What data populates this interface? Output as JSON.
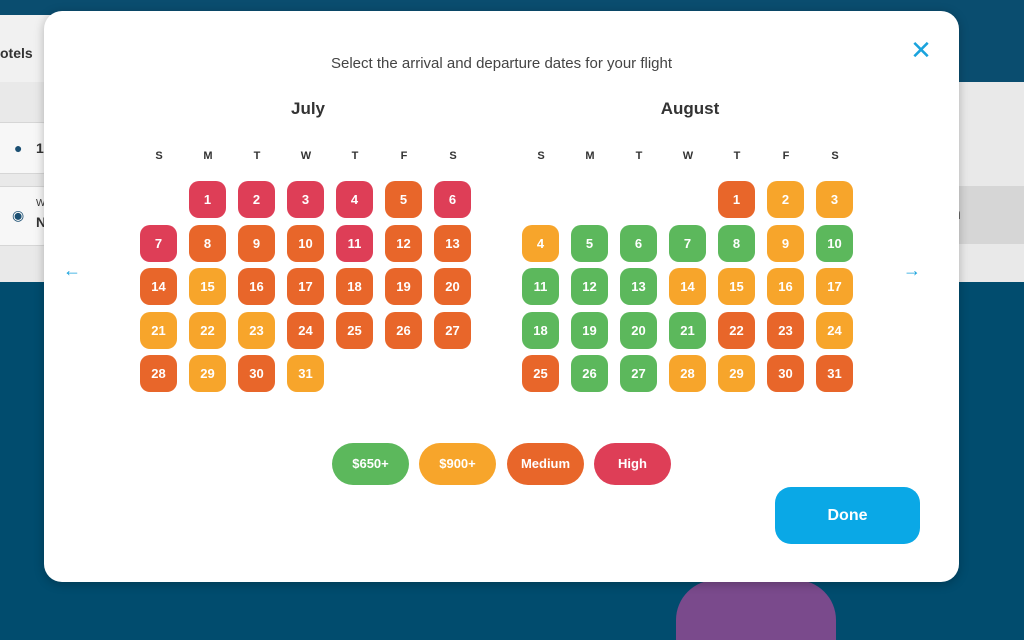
{
  "background": {
    "tab_label": "otels",
    "travelers_value": "1",
    "destination_label": "W",
    "destination_value": "N",
    "search_label": "h"
  },
  "modal": {
    "title": "Select the arrival and departure dates for your flight",
    "close_icon": "close-icon",
    "prev_icon": "arrow-left-icon",
    "next_icon": "arrow-right-icon",
    "done_label": "Done"
  },
  "weekdays": [
    "S",
    "M",
    "T",
    "W",
    "T",
    "F",
    "S"
  ],
  "months": [
    {
      "name": "July",
      "start_weekday": 1,
      "days": [
        {
          "d": "1",
          "p": "high"
        },
        {
          "d": "2",
          "p": "high"
        },
        {
          "d": "3",
          "p": "high"
        },
        {
          "d": "4",
          "p": "high"
        },
        {
          "d": "5",
          "p": "medium"
        },
        {
          "d": "6",
          "p": "high"
        },
        {
          "d": "7",
          "p": "high"
        },
        {
          "d": "8",
          "p": "medium"
        },
        {
          "d": "9",
          "p": "medium"
        },
        {
          "d": "10",
          "p": "medium"
        },
        {
          "d": "11",
          "p": "high"
        },
        {
          "d": "12",
          "p": "medium"
        },
        {
          "d": "13",
          "p": "medium"
        },
        {
          "d": "14",
          "p": "medium"
        },
        {
          "d": "15",
          "p": "mid"
        },
        {
          "d": "16",
          "p": "medium"
        },
        {
          "d": "17",
          "p": "medium"
        },
        {
          "d": "18",
          "p": "medium"
        },
        {
          "d": "19",
          "p": "medium"
        },
        {
          "d": "20",
          "p": "medium"
        },
        {
          "d": "21",
          "p": "mid"
        },
        {
          "d": "22",
          "p": "mid"
        },
        {
          "d": "23",
          "p": "mid"
        },
        {
          "d": "24",
          "p": "medium"
        },
        {
          "d": "25",
          "p": "medium"
        },
        {
          "d": "26",
          "p": "medium"
        },
        {
          "d": "27",
          "p": "medium"
        },
        {
          "d": "28",
          "p": "medium"
        },
        {
          "d": "29",
          "p": "mid"
        },
        {
          "d": "30",
          "p": "medium"
        },
        {
          "d": "31",
          "p": "mid"
        }
      ]
    },
    {
      "name": "August",
      "start_weekday": 4,
      "days": [
        {
          "d": "1",
          "p": "medium"
        },
        {
          "d": "2",
          "p": "mid"
        },
        {
          "d": "3",
          "p": "mid"
        },
        {
          "d": "4",
          "p": "mid"
        },
        {
          "d": "5",
          "p": "low"
        },
        {
          "d": "6",
          "p": "low"
        },
        {
          "d": "7",
          "p": "low"
        },
        {
          "d": "8",
          "p": "low"
        },
        {
          "d": "9",
          "p": "mid"
        },
        {
          "d": "10",
          "p": "low"
        },
        {
          "d": "11",
          "p": "low"
        },
        {
          "d": "12",
          "p": "low"
        },
        {
          "d": "13",
          "p": "low"
        },
        {
          "d": "14",
          "p": "mid"
        },
        {
          "d": "15",
          "p": "mid"
        },
        {
          "d": "16",
          "p": "mid"
        },
        {
          "d": "17",
          "p": "mid"
        },
        {
          "d": "18",
          "p": "low"
        },
        {
          "d": "19",
          "p": "low"
        },
        {
          "d": "20",
          "p": "low"
        },
        {
          "d": "21",
          "p": "low"
        },
        {
          "d": "22",
          "p": "medium"
        },
        {
          "d": "23",
          "p": "medium"
        },
        {
          "d": "24",
          "p": "mid"
        },
        {
          "d": "25",
          "p": "medium"
        },
        {
          "d": "26",
          "p": "low"
        },
        {
          "d": "27",
          "p": "low"
        },
        {
          "d": "28",
          "p": "mid"
        },
        {
          "d": "29",
          "p": "mid"
        },
        {
          "d": "30",
          "p": "medium"
        },
        {
          "d": "31",
          "p": "medium"
        }
      ]
    }
  ],
  "legend": [
    {
      "label": "$650+",
      "level": "low",
      "color": "#5cb85c"
    },
    {
      "label": "$900+",
      "level": "mid",
      "color": "#f7a52b"
    },
    {
      "label": "Medium",
      "level": "medium",
      "color": "#e8662a"
    },
    {
      "label": "High",
      "level": "high",
      "color": "#de3e57"
    }
  ],
  "colors": {
    "accent": "#1aa3dd",
    "done_button": "#0aa8e6",
    "page_background": "#014c6e"
  }
}
